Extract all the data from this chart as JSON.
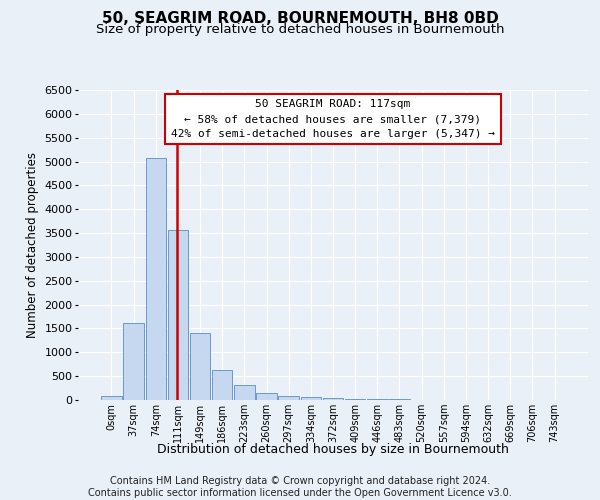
{
  "title": "50, SEAGRIM ROAD, BOURNEMOUTH, BH8 0BD",
  "subtitle": "Size of property relative to detached houses in Bournemouth",
  "xlabel": "Distribution of detached houses by size in Bournemouth",
  "ylabel": "Number of detached properties",
  "bar_labels": [
    "0sqm",
    "37sqm",
    "74sqm",
    "111sqm",
    "149sqm",
    "186sqm",
    "223sqm",
    "260sqm",
    "297sqm",
    "334sqm",
    "372sqm",
    "409sqm",
    "446sqm",
    "483sqm",
    "520sqm",
    "557sqm",
    "594sqm",
    "632sqm",
    "669sqm",
    "706sqm",
    "743sqm"
  ],
  "bar_values": [
    75,
    1620,
    5080,
    3560,
    1400,
    620,
    305,
    140,
    90,
    55,
    40,
    30,
    20,
    15,
    10,
    8,
    5,
    4,
    3,
    3,
    3
  ],
  "bar_color": "#c5d8f0",
  "bar_edge_color": "#5a8fc3",
  "vline_pos": 2.97,
  "vline_color": "#cc0000",
  "ylim_max": 6500,
  "yticks": [
    0,
    500,
    1000,
    1500,
    2000,
    2500,
    3000,
    3500,
    4000,
    4500,
    5000,
    5500,
    6000,
    6500
  ],
  "annotation_line1": "50 SEAGRIM ROAD: 117sqm",
  "annotation_line2": "← 58% of detached houses are smaller (7,379)",
  "annotation_line3": "42% of semi-detached houses are larger (5,347) →",
  "annotation_box_color": "#ffffff",
  "annotation_box_edge_color": "#cc0000",
  "footer_line1": "Contains HM Land Registry data © Crown copyright and database right 2024.",
  "footer_line2": "Contains public sector information licensed under the Open Government Licence v3.0.",
  "bg_color": "#eaf0f8",
  "grid_color": "#ffffff",
  "title_fontsize": 11,
  "subtitle_fontsize": 9.5,
  "ylabel_fontsize": 8.5,
  "xlabel_fontsize": 9,
  "tick_fontsize": 8,
  "xtick_fontsize": 7,
  "footer_fontsize": 7,
  "annotation_fontsize": 8
}
